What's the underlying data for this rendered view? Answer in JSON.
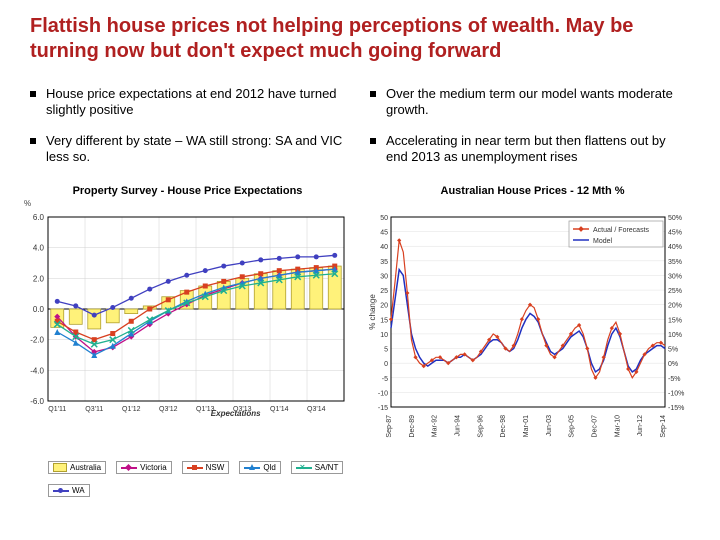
{
  "title": "Flattish house prices not helping perceptions of wealth. May be turning now but don't expect much going forward",
  "bullets": {
    "left": [
      "House price expectations at end 2012 have turned slightly positive",
      "Very different by state – WA still strong: SA and VIC less so."
    ],
    "right": [
      "Over the medium term our model wants moderate growth.",
      "Accelerating in near term but then flattens out by end 2013 as unemployment rises"
    ]
  },
  "chart1": {
    "title": "Property Survey - House Price Expectations",
    "ylabel": "%",
    "ylim": [
      -6,
      6
    ],
    "ytick_step": 2,
    "xlabels": [
      "Q1'11",
      "Q3'11",
      "Q1'12",
      "Q3'12",
      "Q1'13",
      "Q3'13",
      "Q1'14",
      "Q3'14"
    ],
    "expectations_label": "Expectations",
    "colors": {
      "grid": "#d0d0d0",
      "axis": "#000000",
      "australia_fill": "#fff27a",
      "australia_border": "#b0a030",
      "victoria": "#c01088",
      "nsw": "#d84020",
      "qld": "#2080d0",
      "sant": "#20b090",
      "wa": "#4040c0"
    },
    "australia_bars": [
      -1.2,
      -1.0,
      -1.3,
      -0.9,
      -0.3,
      0.2,
      0.8,
      1.2,
      1.5,
      1.8,
      2.0,
      2.3,
      2.5,
      2.6,
      2.7,
      2.8
    ],
    "series": {
      "victoria": [
        -0.5,
        -1.8,
        -2.8,
        -2.5,
        -1.8,
        -1.0,
        -0.3,
        0.3,
        0.9,
        1.3,
        1.7,
        2.0,
        2.2,
        2.4,
        2.5,
        2.6
      ],
      "nsw": [
        -0.8,
        -1.5,
        -2.0,
        -1.6,
        -0.8,
        0.0,
        0.6,
        1.1,
        1.5,
        1.8,
        2.1,
        2.3,
        2.5,
        2.6,
        2.7,
        2.8
      ],
      "qld": [
        -1.5,
        -2.2,
        -3.0,
        -2.4,
        -1.6,
        -0.8,
        -0.1,
        0.5,
        1.0,
        1.4,
        1.7,
        2.0,
        2.2,
        2.4,
        2.5,
        2.6
      ],
      "sant": [
        -1.0,
        -1.8,
        -2.3,
        -2.0,
        -1.4,
        -0.7,
        -0.1,
        0.4,
        0.8,
        1.2,
        1.5,
        1.7,
        1.9,
        2.1,
        2.2,
        2.3
      ],
      "wa": [
        0.5,
        0.2,
        -0.4,
        0.1,
        0.7,
        1.3,
        1.8,
        2.2,
        2.5,
        2.8,
        3.0,
        3.2,
        3.3,
        3.4,
        3.4,
        3.5
      ]
    },
    "legend": [
      {
        "label": "Australia",
        "type": "box",
        "color": "#fff27a",
        "border": "#b0a030"
      },
      {
        "label": "Victoria",
        "type": "line",
        "color": "#c01088",
        "marker": "diamond"
      },
      {
        "label": "NSW",
        "type": "line",
        "color": "#d84020",
        "marker": "square"
      },
      {
        "label": "Qld",
        "type": "line",
        "color": "#2080d0",
        "marker": "triangle"
      },
      {
        "label": "SA/NT",
        "type": "line",
        "color": "#20b090",
        "marker": "x"
      },
      {
        "label": "WA",
        "type": "line",
        "color": "#4040c0",
        "marker": "circle"
      }
    ]
  },
  "chart2": {
    "title": "Australian House Prices - 12 Mth %",
    "ylabel": "% change",
    "ylim": [
      -15,
      50
    ],
    "ytick_step": 5,
    "ylim_r": [
      -15,
      50
    ],
    "ytick_step_r": 5,
    "xlabels": [
      "Sep-87",
      "Dec-89",
      "Mar-92",
      "Jun-94",
      "Sep-96",
      "Dec-98",
      "Mar-01",
      "Jun-03",
      "Sep-05",
      "Dec-07",
      "Mar-10",
      "Jun-12",
      "Sep-14"
    ],
    "colors": {
      "grid": "#e0e0e0",
      "axis": "#000000",
      "actual": "#d84020",
      "model": "#2030c0"
    },
    "legend": [
      {
        "label": "Actual / Forecasts",
        "color": "#d84020",
        "marker": true
      },
      {
        "label": "Model",
        "color": "#2030c0",
        "marker": false
      }
    ],
    "actual": [
      15,
      28,
      42,
      38,
      24,
      8,
      2,
      0,
      -1,
      0,
      1,
      2,
      2,
      1,
      0,
      1,
      2,
      3,
      3,
      2,
      1,
      2,
      4,
      6,
      8,
      10,
      9,
      7,
      5,
      4,
      6,
      10,
      15,
      18,
      20,
      19,
      15,
      10,
      6,
      3,
      2,
      4,
      6,
      8,
      10,
      12,
      13,
      10,
      5,
      -2,
      -5,
      -3,
      2,
      8,
      12,
      14,
      10,
      4,
      -2,
      -5,
      -3,
      0,
      3,
      5,
      6,
      7,
      7,
      6
    ],
    "model": [
      12,
      22,
      32,
      30,
      20,
      10,
      5,
      2,
      0,
      -1,
      0,
      1,
      1,
      1,
      0,
      1,
      2,
      2,
      3,
      2,
      1,
      2,
      3,
      5,
      7,
      8,
      8,
      7,
      5,
      4,
      5,
      8,
      12,
      15,
      17,
      16,
      14,
      10,
      7,
      4,
      3,
      4,
      5,
      7,
      9,
      10,
      11,
      9,
      5,
      0,
      -3,
      -2,
      1,
      6,
      10,
      12,
      9,
      4,
      -1,
      -3,
      -2,
      1,
      3,
      4,
      5,
      6,
      6,
      5
    ]
  }
}
